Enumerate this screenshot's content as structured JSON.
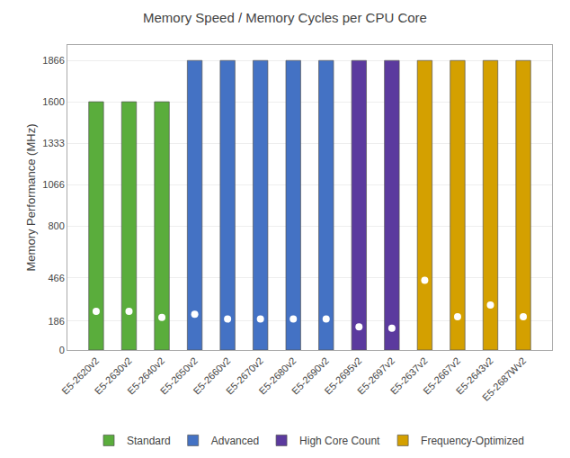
{
  "chart_data": {
    "type": "bar",
    "title": "Memory Speed / Memory Cycles per CPU Core",
    "ylabel": "Memory Performance (MHz)",
    "categories": [
      "E5-2620v2",
      "E5-2630v2",
      "E5-2640v2",
      "E5-2650v2",
      "E5-2660v2",
      "E5-2670v2",
      "E5-2680v2",
      "E5-2690v2",
      "E5-2695v2",
      "E5-2697v2",
      "E5-2637v2",
      "E5-2667v2",
      "E5-2643v2",
      "E5-2687Wv2"
    ],
    "series": [
      {
        "name": "Standard",
        "color": "#5aad3c",
        "values": [
          1600,
          1600,
          1600,
          null,
          null,
          null,
          null,
          null,
          null,
          null,
          null,
          null,
          null,
          null
        ]
      },
      {
        "name": "Advanced",
        "color": "#4472c4",
        "values": [
          null,
          null,
          null,
          1866,
          1866,
          1866,
          1866,
          1866,
          null,
          null,
          null,
          null,
          null,
          null
        ]
      },
      {
        "name": "High Core Count",
        "color": "#5b3a9e",
        "values": [
          null,
          null,
          null,
          null,
          null,
          null,
          null,
          null,
          1866,
          1866,
          null,
          null,
          null,
          null
        ]
      },
      {
        "name": "Frequency-Optimized",
        "color": "#d4a000",
        "values": [
          null,
          null,
          null,
          null,
          null,
          null,
          null,
          null,
          null,
          null,
          1866,
          1866,
          1866,
          1866
        ]
      },
      {
        "type": "scatter",
        "color": "#ffffff",
        "marker": "circle",
        "values": [
          250,
          250,
          210,
          230,
          200,
          200,
          200,
          200,
          150,
          140,
          450,
          215,
          290,
          215
        ]
      }
    ],
    "ylim": [
      0,
      1966
    ],
    "yticks": [
      0,
      186,
      466,
      800,
      1066,
      1333,
      1600,
      1866
    ],
    "grid": true,
    "legend": "bottom"
  }
}
